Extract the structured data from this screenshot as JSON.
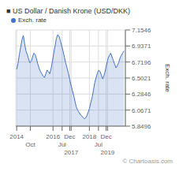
{
  "chart_data": {
    "type": "area",
    "title": "■ US Dollar / Danish Krone (USD/DKK)",
    "ylabel": "Exch. rate",
    "annotations": [
      "© Chartoasis.com"
    ],
    "legend": "upper left",
    "grid": true,
    "xlim": [
      2013.95,
      2019.98
    ],
    "xticks": [
      2014.0,
      {
        "value": 2014.75,
        "label": "Oct"
      },
      2016.0,
      {
        "value": 2016.5,
        "label": "Jul"
      },
      {
        "value": 2016.92,
        "label": "Dec"
      },
      2017.0,
      2018.0,
      {
        "value": 2018.5,
        "label": "Jul"
      },
      {
        "value": 2018.92,
        "label": "Dec"
      },
      2019.0
    ],
    "ylim": [
      5.8496,
      7.1546
    ],
    "yticks": [
      5.8496,
      6.0671,
      6.2846,
      6.5021,
      6.7196,
      6.9371,
      7.1546
    ],
    "x": [
      2014.0,
      2014.0728,
      2014.1457,
      2014.2185,
      2014.2914,
      2014.3642,
      2014.437,
      2014.5099,
      2014.5827,
      2014.6556,
      2014.7284,
      2014.8012,
      2014.8741,
      2014.9469,
      2015.0198,
      2015.0926,
      2015.1654,
      2015.2383,
      2015.3111,
      2015.384,
      2015.4568,
      2015.5296,
      2015.6025,
      2015.6753,
      2015.7481,
      2015.821,
      2015.8938,
      2015.9667,
      2016.0395,
      2016.1123,
      2016.1852,
      2016.258,
      2016.3309,
      2016.4037,
      2016.4765,
      2016.5494,
      2016.6222,
      2016.6951,
      2016.7679,
      2016.8407,
      2016.9136,
      2016.9864,
      2017.0593,
      2017.1321,
      2017.2049,
      2017.2778,
      2017.3506,
      2017.4235,
      2017.4963,
      2017.5691,
      2017.642,
      2017.7148,
      2017.7877,
      2017.8605,
      2017.9333,
      2018.0062,
      2018.079,
      2018.1519,
      2018.2247,
      2018.2975,
      2018.3704,
      2018.4432,
      2018.516,
      2018.5889,
      2018.6617,
      2018.7346,
      2018.8074,
      2018.8802,
      2018.9531,
      2019.0259,
      2019.0988,
      2019.1716,
      2019.2444,
      2019.3173,
      2019.3901,
      2019.463,
      2019.5358,
      2019.6086,
      2019.6815,
      2019.7543,
      2019.8272,
      2019.9
    ],
    "series": [
      {
        "name": "Exch. rate",
        "color": "#4472C4",
        "values": [
          6.62,
          6.7,
          6.82,
          6.92,
          7.02,
          7.08,
          6.97,
          6.87,
          6.82,
          6.76,
          6.71,
          6.73,
          6.79,
          6.84,
          6.82,
          6.76,
          6.69,
          6.63,
          6.59,
          6.56,
          6.53,
          6.51,
          6.56,
          6.61,
          6.59,
          6.56,
          6.63,
          6.73,
          6.84,
          6.94,
          7.04,
          7.09,
          7.07,
          7.01,
          6.94,
          6.87,
          6.79,
          6.71,
          6.64,
          6.57,
          6.49,
          6.41,
          6.34,
          6.27,
          6.19,
          6.11,
          6.07,
          6.04,
          6.01,
          5.99,
          5.97,
          5.95,
          5.96,
          5.99,
          6.04,
          6.09,
          6.17,
          6.24,
          6.34,
          6.44,
          6.51,
          6.57,
          6.61,
          6.59,
          6.54,
          6.49,
          6.54,
          6.61,
          6.69,
          6.77,
          6.81,
          6.84,
          6.79,
          6.74,
          6.69,
          6.64,
          6.67,
          6.71,
          6.77,
          6.81,
          6.84,
          6.87
        ]
      }
    ]
  }
}
